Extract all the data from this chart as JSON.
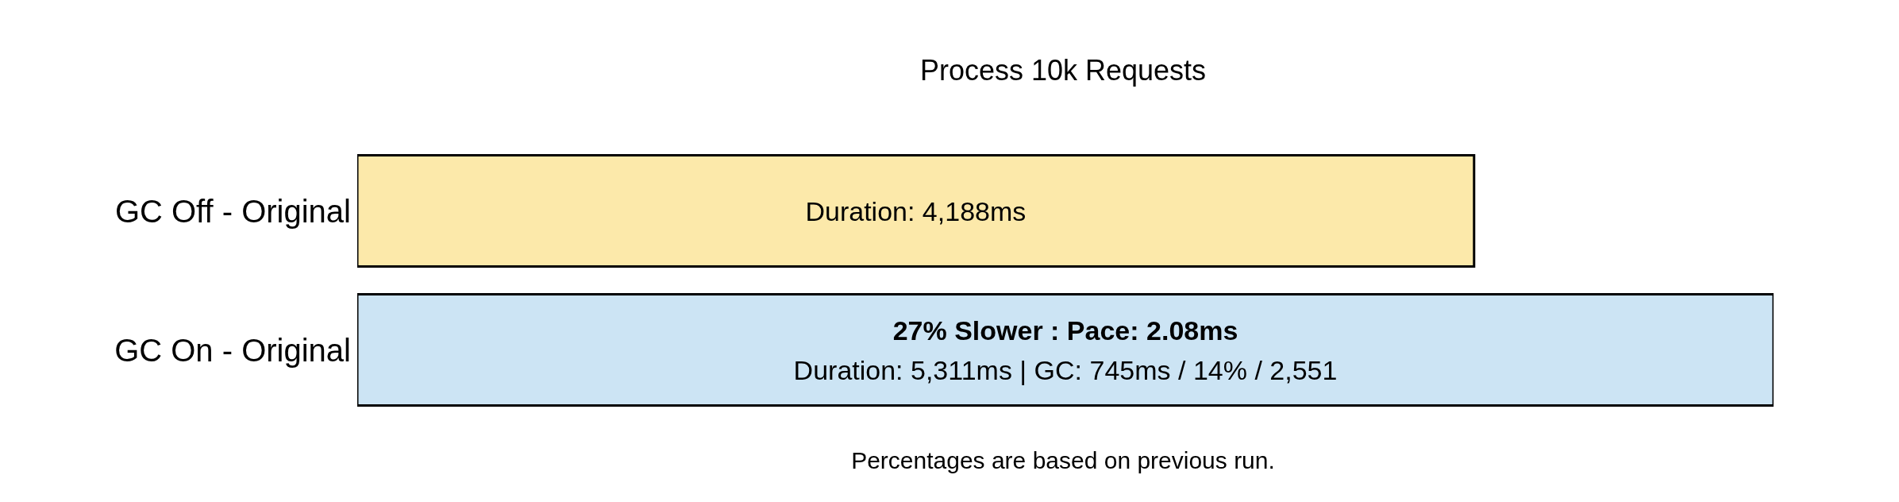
{
  "chart_data": {
    "type": "bar",
    "orientation": "horizontal",
    "title": "Process 10k Requests",
    "categories": [
      "GC Off - Original",
      "GC On - Original"
    ],
    "values": [
      4188,
      5311
    ],
    "colors": [
      "#fce9aa",
      "#cce4f4"
    ],
    "value_labels": [
      "Duration: 4,188ms",
      "Duration: 5,311ms | GC: 745ms / 14% / 2,551"
    ],
    "annotations": [
      "27% Slower : Pace: 2.08ms",
      "Percentages are based on previous run."
    ],
    "grid": false,
    "legend": false
  }
}
